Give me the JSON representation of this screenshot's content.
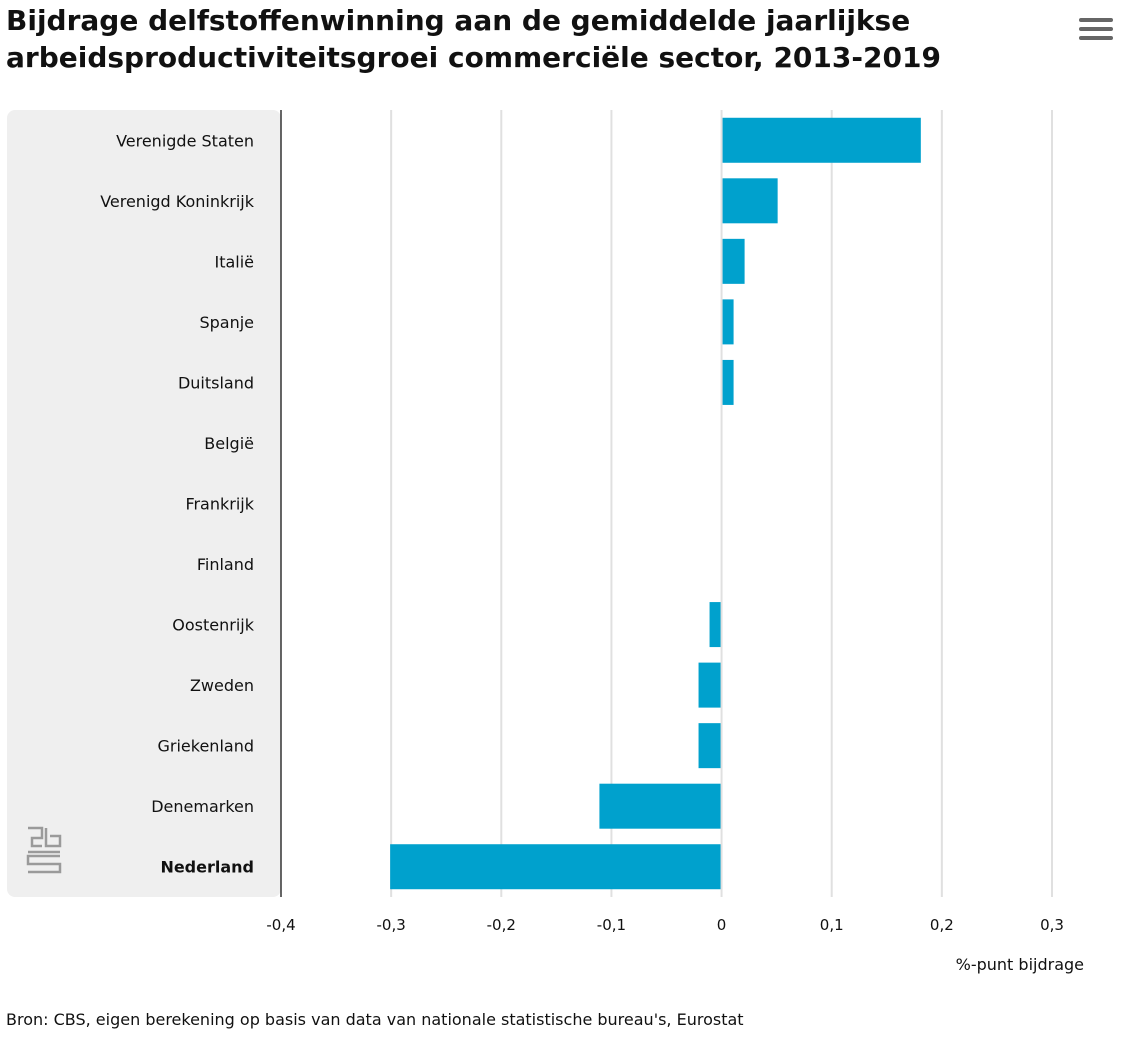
{
  "header": {
    "title": "Bijdrage delfstoffenwinning aan de gemiddelde jaarlijkse arbeidsproductiviteitsgroei commerciële sector, 2013-2019",
    "menu_icon": "hamburger-menu-icon"
  },
  "footer": {
    "source": "Bron: CBS, eigen berekening op basis van data van nationale statistische bureau's, Eurostat"
  },
  "logo": {
    "icon": "cbs-logo-icon"
  },
  "colors": {
    "bar": "#00A1CD",
    "grid": "#E0E0E0",
    "panel": "#EFEFEF"
  },
  "chart_data": {
    "type": "bar",
    "orientation": "horizontal",
    "title": "Bijdrage delfstoffenwinning aan de gemiddelde jaarlijkse arbeidsproductiviteitsgroei commerciële sector, 2013-2019",
    "xlabel": "%-punt bijdrage",
    "ylabel": "",
    "categories": [
      "Verenigde Staten",
      "Verenigd Koninkrijk",
      "Italië",
      "Spanje",
      "Duitsland",
      "België",
      "Frankrijk",
      "Finland",
      "Oostenrijk",
      "Zweden",
      "Griekenland",
      "Denemarken",
      "Nederland"
    ],
    "highlighted_category": "Nederland",
    "values": [
      0.18,
      0.05,
      0.02,
      0.01,
      0.01,
      0,
      0,
      0,
      -0.01,
      -0.02,
      -0.02,
      -0.11,
      -0.3
    ],
    "xlim": [
      -0.4,
      0.3
    ],
    "xticks": [
      -0.4,
      -0.3,
      -0.2,
      -0.1,
      0,
      0.1,
      0.2,
      0.3
    ],
    "xtick_labels": [
      "-0,4",
      "-0,3",
      "-0,2",
      "-0,1",
      "0",
      "0,1",
      "0,2",
      "0,3"
    ],
    "grid": true,
    "legend": "none"
  }
}
